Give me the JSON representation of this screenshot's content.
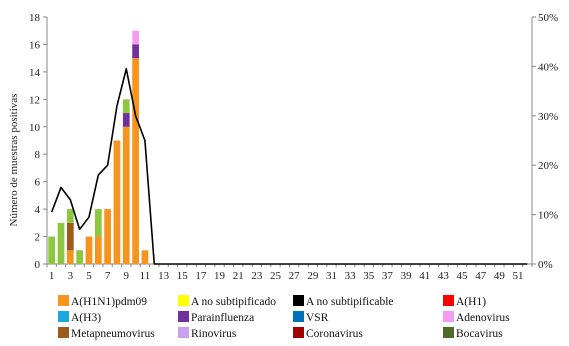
{
  "chart_data": {
    "type": "bar",
    "title": "",
    "ylabel": "Número de muestras positivas",
    "ylim": [
      0,
      18
    ],
    "yticks": [
      0,
      2,
      4,
      6,
      8,
      10,
      12,
      14,
      16,
      18
    ],
    "y2lim": [
      0,
      0.5
    ],
    "y2ticks": [
      "0%",
      "10%",
      "20%",
      "30%",
      "40%",
      "50%"
    ],
    "x": [
      1,
      2,
      3,
      4,
      5,
      6,
      7,
      8,
      9,
      10,
      11,
      12,
      13,
      14,
      15,
      16,
      17,
      18,
      19,
      20,
      21,
      22,
      23,
      24,
      25,
      26,
      27,
      28,
      29,
      30,
      31,
      32,
      33,
      34,
      35,
      36,
      37,
      38,
      39,
      40,
      41,
      42,
      43,
      44,
      45,
      46,
      47,
      48,
      49,
      50,
      51,
      52
    ],
    "xtick_labels": [
      "1",
      "3",
      "5",
      "7",
      "9",
      "11",
      "13",
      "15",
      "17",
      "19",
      "21",
      "23",
      "25",
      "27",
      "29",
      "31",
      "33",
      "35",
      "37",
      "39",
      "41",
      "43",
      "45",
      "47",
      "49",
      "51"
    ],
    "series": [
      {
        "name": "A(H1N1)pdm09",
        "color": "#F7941D",
        "values": [
          0,
          0,
          1,
          0,
          2,
          2,
          4,
          9,
          10,
          15,
          1,
          0,
          0,
          0,
          0,
          0,
          0,
          0,
          0,
          0,
          0,
          0,
          0,
          0,
          0,
          0,
          0,
          0,
          0,
          0,
          0,
          0,
          0,
          0,
          0,
          0,
          0,
          0,
          0,
          0,
          0,
          0,
          0,
          0,
          0,
          0,
          0,
          0,
          0,
          0,
          0,
          0
        ]
      },
      {
        "name": "A no subtipificado",
        "color": "#FFFF00",
        "values": [
          0,
          0,
          0,
          0,
          0,
          0,
          0,
          0,
          0,
          0,
          0,
          0,
          0,
          0,
          0,
          0,
          0,
          0,
          0,
          0,
          0,
          0,
          0,
          0,
          0,
          0,
          0,
          0,
          0,
          0,
          0,
          0,
          0,
          0,
          0,
          0,
          0,
          0,
          0,
          0,
          0,
          0,
          0,
          0,
          0,
          0,
          0,
          0,
          0,
          0,
          0,
          0
        ]
      },
      {
        "name": "A no subtipificable",
        "color": "#000000",
        "values": [
          0,
          0,
          0,
          0,
          0,
          0,
          0,
          0,
          0,
          0,
          0,
          0,
          0,
          0,
          0,
          0,
          0,
          0,
          0,
          0,
          0,
          0,
          0,
          0,
          0,
          0,
          0,
          0,
          0,
          0,
          0,
          0,
          0,
          0,
          0,
          0,
          0,
          0,
          0,
          0,
          0,
          0,
          0,
          0,
          0,
          0,
          0,
          0,
          0,
          0,
          0,
          0
        ]
      },
      {
        "name": "A(H1)",
        "color": "#FF0000",
        "values": [
          0,
          0,
          0,
          0,
          0,
          0,
          0,
          0,
          0,
          0,
          0,
          0,
          0,
          0,
          0,
          0,
          0,
          0,
          0,
          0,
          0,
          0,
          0,
          0,
          0,
          0,
          0,
          0,
          0,
          0,
          0,
          0,
          0,
          0,
          0,
          0,
          0,
          0,
          0,
          0,
          0,
          0,
          0,
          0,
          0,
          0,
          0,
          0,
          0,
          0,
          0,
          0
        ]
      },
      {
        "name": "A(H3)",
        "color": "#1FA7E0",
        "values": [
          0,
          0,
          0,
          0,
          0,
          0,
          0,
          0,
          0,
          0,
          0,
          0,
          0,
          0,
          0,
          0,
          0,
          0,
          0,
          0,
          0,
          0,
          0,
          0,
          0,
          0,
          0,
          0,
          0,
          0,
          0,
          0,
          0,
          0,
          0,
          0,
          0,
          0,
          0,
          0,
          0,
          0,
          0,
          0,
          0,
          0,
          0,
          0,
          0,
          0,
          0,
          0
        ]
      },
      {
        "name": "Parainfluenza",
        "color": "#7030A0",
        "values": [
          0,
          0,
          0,
          0,
          0,
          0,
          0,
          0,
          1,
          1,
          0,
          0,
          0,
          0,
          0,
          0,
          0,
          0,
          0,
          0,
          0,
          0,
          0,
          0,
          0,
          0,
          0,
          0,
          0,
          0,
          0,
          0,
          0,
          0,
          0,
          0,
          0,
          0,
          0,
          0,
          0,
          0,
          0,
          0,
          0,
          0,
          0,
          0,
          0,
          0,
          0,
          0
        ]
      },
      {
        "name": "VSR",
        "color": "#0070C0",
        "values": [
          0,
          0,
          0,
          0,
          0,
          0,
          0,
          0,
          0,
          0,
          0,
          0,
          0,
          0,
          0,
          0,
          0,
          0,
          0,
          0,
          0,
          0,
          0,
          0,
          0,
          0,
          0,
          0,
          0,
          0,
          0,
          0,
          0,
          0,
          0,
          0,
          0,
          0,
          0,
          0,
          0,
          0,
          0,
          0,
          0,
          0,
          0,
          0,
          0,
          0,
          0,
          0
        ]
      },
      {
        "name": "Adenovirus",
        "color": "#F49CF2",
        "values": [
          0,
          0,
          0,
          0,
          0,
          0,
          0,
          0,
          0,
          1,
          0,
          0,
          0,
          0,
          0,
          0,
          0,
          0,
          0,
          0,
          0,
          0,
          0,
          0,
          0,
          0,
          0,
          0,
          0,
          0,
          0,
          0,
          0,
          0,
          0,
          0,
          0,
          0,
          0,
          0,
          0,
          0,
          0,
          0,
          0,
          0,
          0,
          0,
          0,
          0,
          0,
          0
        ]
      },
      {
        "name": "Metapneumovirus",
        "color": "#9C5A1E",
        "values": [
          0,
          0,
          2,
          0,
          0,
          0,
          0,
          0,
          0,
          0,
          0,
          0,
          0,
          0,
          0,
          0,
          0,
          0,
          0,
          0,
          0,
          0,
          0,
          0,
          0,
          0,
          0,
          0,
          0,
          0,
          0,
          0,
          0,
          0,
          0,
          0,
          0,
          0,
          0,
          0,
          0,
          0,
          0,
          0,
          0,
          0,
          0,
          0,
          0,
          0,
          0,
          0
        ]
      },
      {
        "name": "Rinovirus",
        "color": "#C9A0F0",
        "values": [
          0,
          0,
          0,
          0,
          0,
          0,
          0,
          0,
          0,
          0,
          0,
          0,
          0,
          0,
          0,
          0,
          0,
          0,
          0,
          0,
          0,
          0,
          0,
          0,
          0,
          0,
          0,
          0,
          0,
          0,
          0,
          0,
          0,
          0,
          0,
          0,
          0,
          0,
          0,
          0,
          0,
          0,
          0,
          0,
          0,
          0,
          0,
          0,
          0,
          0,
          0,
          0
        ]
      },
      {
        "name": "Coronavirus",
        "color": "#A00000",
        "values": [
          0,
          0,
          0,
          0,
          0,
          0,
          0,
          0,
          0,
          0,
          0,
          0,
          0,
          0,
          0,
          0,
          0,
          0,
          0,
          0,
          0,
          0,
          0,
          0,
          0,
          0,
          0,
          0,
          0,
          0,
          0,
          0,
          0,
          0,
          0,
          0,
          0,
          0,
          0,
          0,
          0,
          0,
          0,
          0,
          0,
          0,
          0,
          0,
          0,
          0,
          0,
          0
        ]
      },
      {
        "name": "Bocavirus",
        "color": "#4E6B2A",
        "values": [
          0,
          0,
          0,
          0,
          0,
          0,
          0,
          0,
          0,
          0,
          0,
          0,
          0,
          0,
          0,
          0,
          0,
          0,
          0,
          0,
          0,
          0,
          0,
          0,
          0,
          0,
          0,
          0,
          0,
          0,
          0,
          0,
          0,
          0,
          0,
          0,
          0,
          0,
          0,
          0,
          0,
          0,
          0,
          0,
          0,
          0,
          0,
          0,
          0,
          0,
          0,
          0
        ]
      },
      {
        "name": "",
        "color": "#8DC63F",
        "values": [
          2,
          3,
          1,
          1,
          0,
          2,
          0,
          0,
          1,
          0,
          0,
          0,
          0,
          0,
          0,
          0,
          0,
          0,
          0,
          0,
          0,
          0,
          0,
          0,
          0,
          0,
          0,
          0,
          0,
          0,
          0,
          0,
          0,
          0,
          0,
          0,
          0,
          0,
          0,
          0,
          0,
          0,
          0,
          0,
          0,
          0,
          0,
          0,
          0,
          0,
          0,
          0
        ]
      }
    ],
    "line": {
      "axis": "right",
      "color": "#000000",
      "values": [
        0.105,
        0.155,
        0.13,
        0.07,
        0.095,
        0.18,
        0.2,
        0.32,
        0.395,
        0.3,
        0.25,
        0.0,
        0,
        0,
        0,
        0,
        0,
        0,
        0,
        0,
        0,
        0,
        0,
        0,
        0,
        0,
        0,
        0,
        0,
        0,
        0,
        0,
        0,
        0,
        0,
        0,
        0,
        0,
        0,
        0,
        0,
        0,
        0,
        0,
        0,
        0,
        0,
        0,
        0,
        0,
        0,
        0
      ]
    },
    "legend": {
      "placement": "bottom",
      "rows": [
        [
          "A(H1N1)pdm09",
          "A no subtipificado",
          "A no subtipificable",
          "A(H1)"
        ],
        [
          "A(H3)",
          "Parainfluenza",
          "VSR",
          "Adenovirus"
        ],
        [
          "Metapneumovirus",
          "Rinovirus",
          "Coronavirus",
          "Bocavirus"
        ]
      ]
    },
    "grid": false
  }
}
